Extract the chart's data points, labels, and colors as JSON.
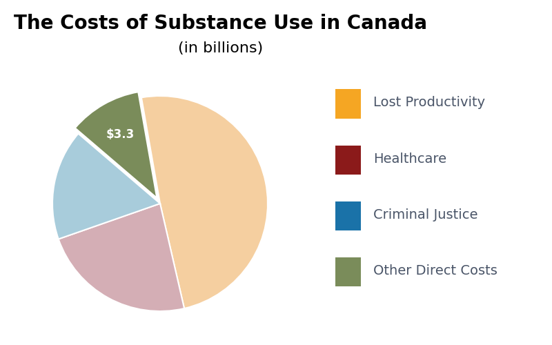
{
  "title_line1": "The Costs of Substance Use in Canada",
  "title_line2": "(in billions)",
  "slices": [
    {
      "label": "Lost Productivity",
      "value": 14.8,
      "color": "#F5CFA0",
      "explode": 0.0
    },
    {
      "label": "Healthcare",
      "value": 7.0,
      "color": "#D4AEB5",
      "explode": 0.0
    },
    {
      "label": "Criminal Justice",
      "value": 5.0,
      "color": "#A8CCDB",
      "explode": 0.0
    },
    {
      "label": "Other Direct Costs",
      "value": 3.3,
      "color": "#7A8C5A",
      "explode": 0.06
    }
  ],
  "annotation_label": "$3.3",
  "annotation_color": "#FFFFFF",
  "legend_colors": {
    "Lost Productivity": "#F5A623",
    "Healthcare": "#8B1A1A",
    "Criminal Justice": "#1A72A8",
    "Other Direct Costs": "#7A8C5A"
  },
  "legend_text_color": "#4A5568",
  "background_color": "#FFFFFF",
  "title_fontsize": 20,
  "subtitle_fontsize": 16,
  "legend_fontsize": 14
}
